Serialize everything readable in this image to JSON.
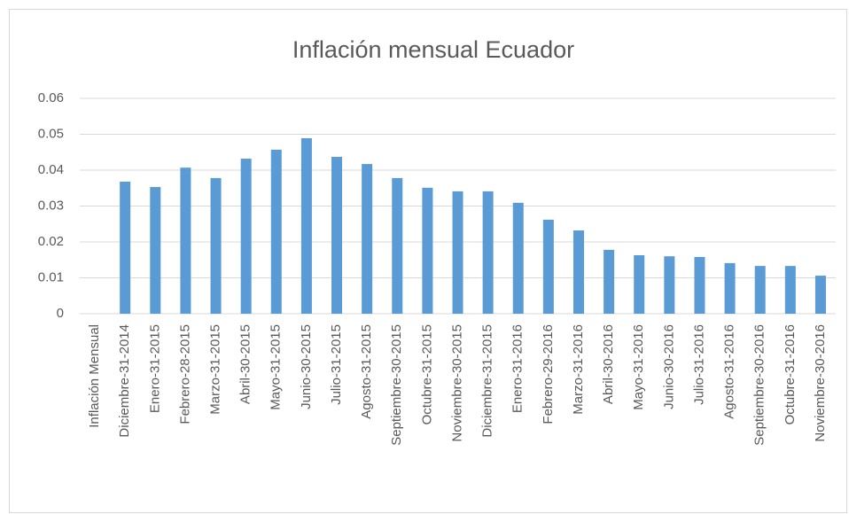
{
  "chart_data": {
    "type": "bar",
    "title": "Inflación mensual Ecuador",
    "categories": [
      "Inflación Mensual",
      "Diciembre-31-2014",
      "Enero-31-2015",
      "Febrero-28-2015",
      "Marzo-31-2015",
      "Abril-30-2015",
      "Mayo-31-2015",
      "Junio-30-2015",
      "Julio-31-2015",
      "Agosto-31-2015",
      "Septiembre-30-2015",
      "Octubre-31-2015",
      "Noviembre-30-2015",
      "Diciembre-31-2015",
      "Enero-31-2016",
      "Febrero-29-2016",
      "Marzo-31-2016",
      "Abril-30-2016",
      "Mayo-31-2016",
      "Junio-30-2016",
      "Julio-31-2016",
      "Agosto-31-2016",
      "Septiembre-30-2016",
      "Octubre-31-2016",
      "Noviembre-30-2016"
    ],
    "values": [
      null,
      0.0368,
      0.0353,
      0.0407,
      0.0378,
      0.0432,
      0.0457,
      0.0489,
      0.0437,
      0.0417,
      0.0378,
      0.0351,
      0.0341,
      0.0341,
      0.0309,
      0.0262,
      0.0232,
      0.0178,
      0.0163,
      0.016,
      0.0158,
      0.0141,
      0.0133,
      0.0133,
      0.0106
    ],
    "color": "#5b9bd5",
    "ylim": [
      0,
      0.06
    ],
    "yticks": [
      0,
      0.01,
      0.02,
      0.03,
      0.04,
      0.05,
      0.06
    ],
    "grid": true
  }
}
